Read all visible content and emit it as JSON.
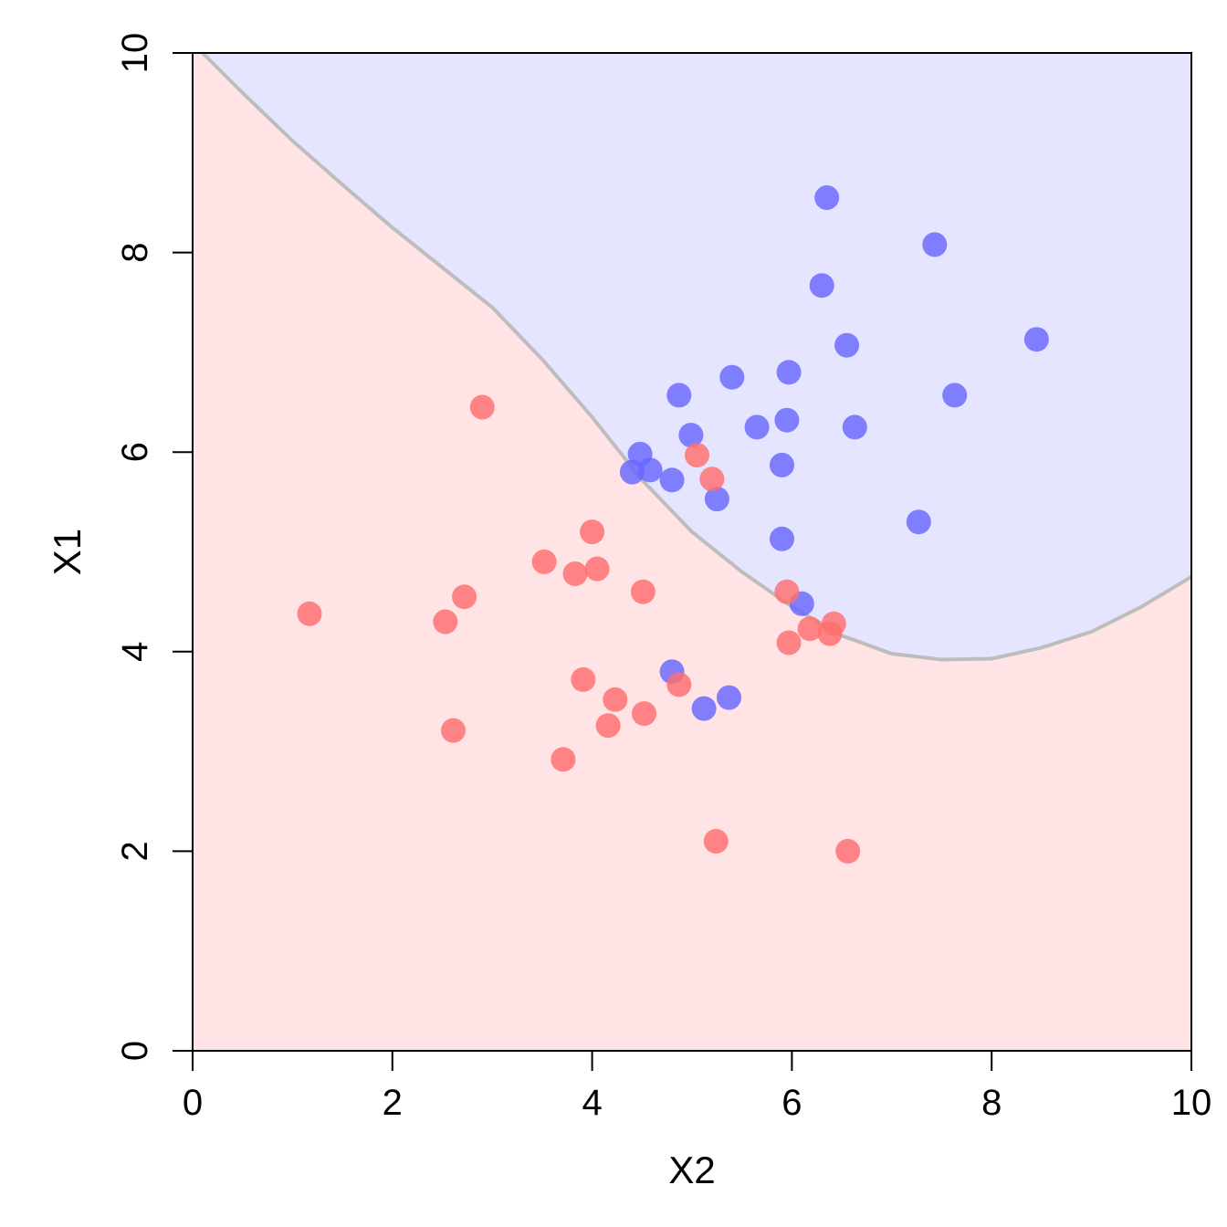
{
  "chart_data": {
    "type": "scatter",
    "title": "",
    "xlabel": "X2",
    "ylabel": "X1",
    "xlim": [
      0,
      10
    ],
    "ylim": [
      0,
      10
    ],
    "x_ticks": [
      0,
      2,
      4,
      6,
      8,
      10
    ],
    "y_ticks": [
      0,
      2,
      4,
      6,
      8,
      10
    ],
    "grid": false,
    "legend": "none",
    "regions": [
      {
        "color": "#e5e5ff",
        "side": "above-boundary"
      },
      {
        "color": "#ffe3e5",
        "side": "below-boundary"
      }
    ],
    "decision_boundary": {
      "color": "#bdbdbd",
      "points": [
        [
          0.1,
          10.0
        ],
        [
          0.5,
          9.6
        ],
        [
          1.0,
          9.12
        ],
        [
          1.5,
          8.68
        ],
        [
          2.0,
          8.25
        ],
        [
          2.5,
          7.85
        ],
        [
          3.0,
          7.45
        ],
        [
          3.5,
          6.93
        ],
        [
          4.0,
          6.35
        ],
        [
          4.5,
          5.72
        ],
        [
          5.0,
          5.2
        ],
        [
          5.5,
          4.8
        ],
        [
          6.0,
          4.45
        ],
        [
          6.5,
          4.16
        ],
        [
          7.0,
          3.98
        ],
        [
          7.5,
          3.92
        ],
        [
          8.0,
          3.93
        ],
        [
          8.5,
          4.04
        ],
        [
          9.0,
          4.2
        ],
        [
          9.5,
          4.45
        ],
        [
          10.0,
          4.75
        ]
      ]
    },
    "series": [
      {
        "color": "#6666ff",
        "points": [
          [
            6.35,
            8.55
          ],
          [
            7.43,
            8.08
          ],
          [
            6.3,
            7.67
          ],
          [
            8.45,
            7.13
          ],
          [
            6.55,
            7.07
          ],
          [
            5.4,
            6.75
          ],
          [
            5.97,
            6.8
          ],
          [
            4.87,
            6.57
          ],
          [
            7.63,
            6.57
          ],
          [
            5.95,
            6.32
          ],
          [
            5.65,
            6.25
          ],
          [
            6.63,
            6.25
          ],
          [
            4.99,
            6.17
          ],
          [
            4.48,
            5.98
          ],
          [
            4.4,
            5.8
          ],
          [
            4.58,
            5.82
          ],
          [
            4.8,
            5.72
          ],
          [
            5.9,
            5.87
          ],
          [
            5.25,
            5.53
          ],
          [
            7.27,
            5.3
          ],
          [
            5.9,
            5.13
          ],
          [
            6.1,
            4.48
          ],
          [
            4.8,
            3.8
          ],
          [
            5.12,
            3.43
          ],
          [
            5.37,
            3.54
          ]
        ]
      },
      {
        "color": "#ff6e6e",
        "points": [
          [
            2.9,
            6.45
          ],
          [
            5.05,
            5.97
          ],
          [
            5.2,
            5.73
          ],
          [
            4.0,
            5.2
          ],
          [
            3.52,
            4.9
          ],
          [
            3.83,
            4.78
          ],
          [
            4.05,
            4.83
          ],
          [
            4.51,
            4.6
          ],
          [
            2.72,
            4.55
          ],
          [
            1.17,
            4.38
          ],
          [
            2.53,
            4.3
          ],
          [
            5.95,
            4.6
          ],
          [
            6.18,
            4.23
          ],
          [
            6.42,
            4.28
          ],
          [
            6.38,
            4.18
          ],
          [
            5.97,
            4.09
          ],
          [
            3.91,
            3.72
          ],
          [
            4.87,
            3.67
          ],
          [
            4.23,
            3.52
          ],
          [
            4.52,
            3.38
          ],
          [
            4.16,
            3.26
          ],
          [
            2.61,
            3.21
          ],
          [
            3.71,
            2.92
          ],
          [
            5.24,
            2.1
          ],
          [
            6.56,
            2.0
          ]
        ]
      }
    ]
  }
}
